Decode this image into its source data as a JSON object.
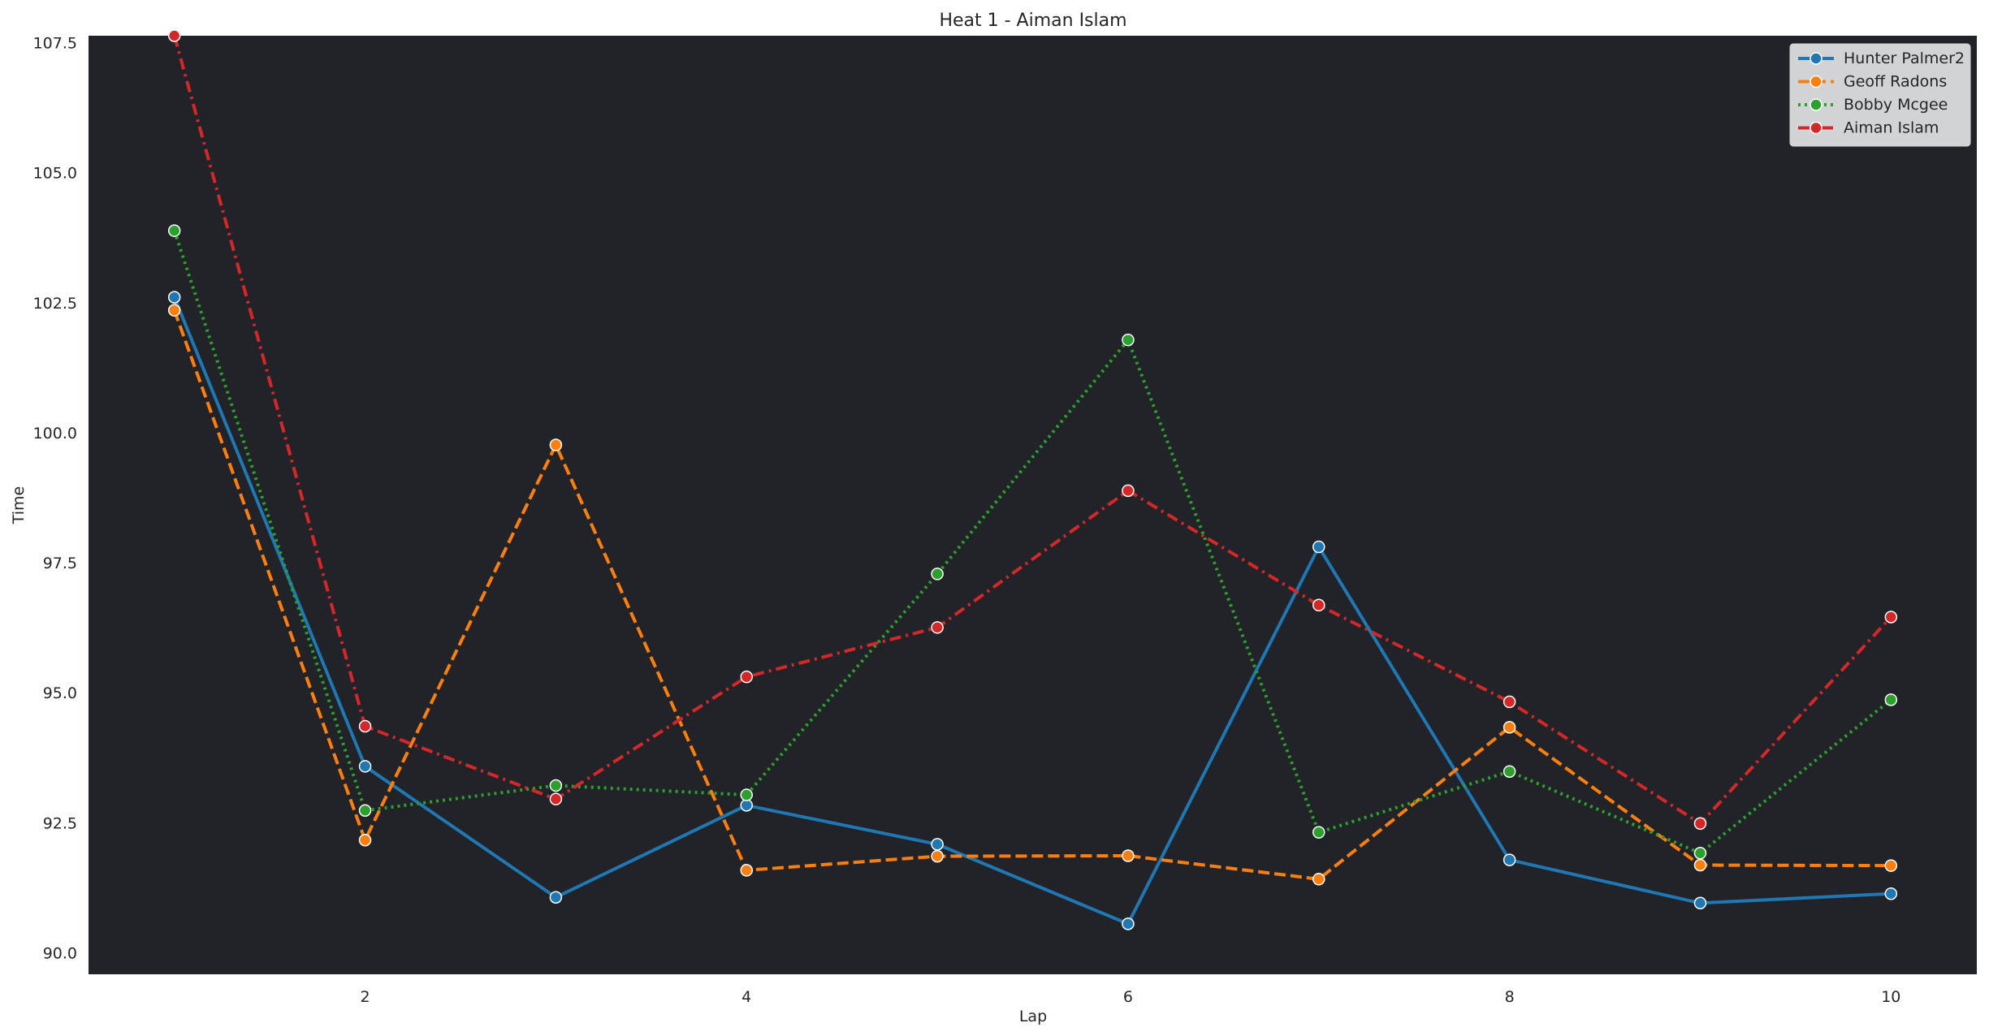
{
  "chart_data": {
    "type": "line",
    "title": "Heat 1 - Aiman Islam",
    "xlabel": "Lap",
    "ylabel": "Time",
    "xlim": [
      0.55,
      10.45
    ],
    "ylim": [
      89.6,
      107.65
    ],
    "xticks": [
      2,
      4,
      6,
      8,
      10
    ],
    "yticks": [
      90.0,
      92.5,
      95.0,
      97.5,
      100.0,
      102.5,
      105.0,
      107.5
    ],
    "ytick_labels": [
      "90.0",
      "92.5",
      "95.0",
      "97.5",
      "100.0",
      "102.5",
      "105.0",
      "107.5"
    ],
    "grid": false,
    "plot_background": "#212328",
    "legend_position": "top-right",
    "x": [
      1,
      2,
      3,
      4,
      5,
      6,
      7,
      8,
      9,
      10
    ],
    "series": [
      {
        "name": "Hunter Palmer2",
        "color": "#1f77b4",
        "dash": "solid",
        "values": [
          102.62,
          93.6,
          91.08,
          92.85,
          92.1,
          90.57,
          97.82,
          91.8,
          90.97,
          91.15
        ]
      },
      {
        "name": "Geoff Radons",
        "color": "#ff7f0e",
        "dash": "dashed",
        "values": [
          102.37,
          92.18,
          99.78,
          91.6,
          91.87,
          91.88,
          91.43,
          94.35,
          91.7,
          91.69
        ]
      },
      {
        "name": "Bobby Mcgee",
        "color": "#2ca02c",
        "dash": "dotted",
        "values": [
          103.9,
          92.75,
          93.23,
          93.05,
          97.3,
          101.8,
          92.33,
          93.5,
          91.93,
          94.88
        ]
      },
      {
        "name": "Aiman Islam",
        "color": "#d62728",
        "dash": "dashdot",
        "values": [
          107.65,
          94.37,
          92.97,
          95.32,
          96.27,
          98.9,
          96.7,
          94.84,
          92.5,
          96.47
        ]
      }
    ]
  }
}
